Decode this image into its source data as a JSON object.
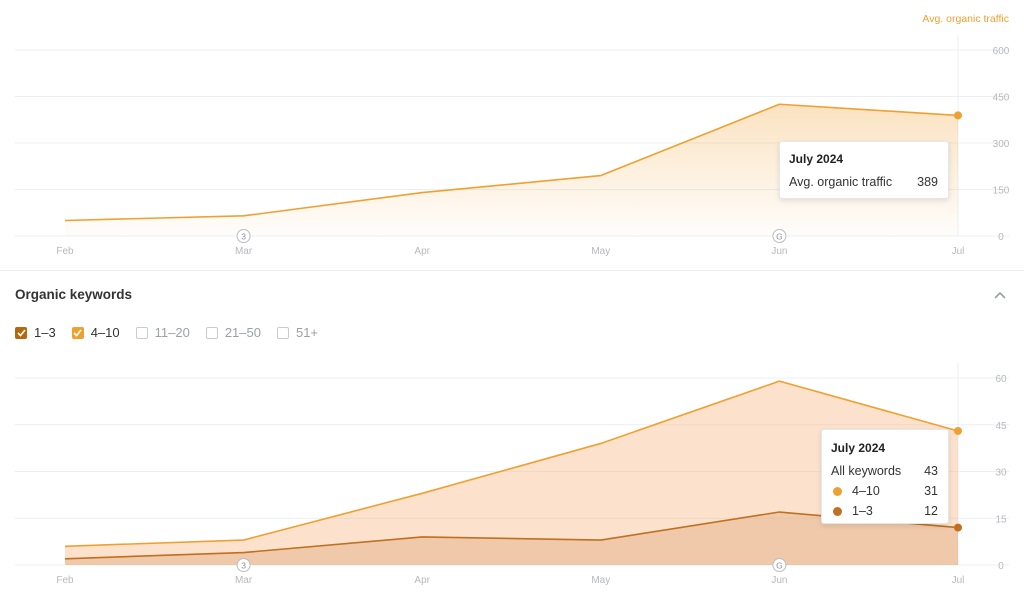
{
  "colors": {
    "orange": "#f0a030",
    "brown": "#c07020",
    "axis_text": "#b5b9bd",
    "grid": "#eceff2",
    "checkbox_brown": "#b5690f",
    "checkbox_orange": "#f0a030"
  },
  "traffic": {
    "axis_title": "Avg. organic traffic",
    "tooltip": {
      "title": "July 2024",
      "label": "Avg. organic traffic",
      "value": "389"
    }
  },
  "keywords_section": {
    "title": "Organic keywords",
    "collapse_icon": "chevron-up-icon",
    "filters": [
      {
        "label": "1–3",
        "checked": true,
        "color": "#b5690f"
      },
      {
        "label": "4–10",
        "checked": true,
        "color": "#f0a030"
      },
      {
        "label": "11–20",
        "checked": false
      },
      {
        "label": "21–50",
        "checked": false
      },
      {
        "label": "51+",
        "checked": false
      }
    ],
    "tooltip": {
      "title": "July 2024",
      "rows": [
        {
          "label": "All keywords",
          "value": "43"
        },
        {
          "label": "4–10",
          "value": "31",
          "color": "#f0a030"
        },
        {
          "label": "1–3",
          "value": "12",
          "color": "#c07020"
        }
      ]
    }
  },
  "chart_data": [
    {
      "type": "area",
      "x": [
        "Feb",
        "Mar",
        "Apr",
        "May",
        "Jun",
        "Jul"
      ],
      "ylim": [
        0,
        600
      ],
      "yticks": [
        0,
        150,
        300,
        450,
        600
      ],
      "ylabel": "Avg. organic traffic",
      "grid": true,
      "series": [
        {
          "name": "Avg. organic traffic",
          "values": [
            50,
            65,
            140,
            195,
            425,
            389
          ],
          "color": "#f0a030"
        }
      ],
      "annotations": [
        {
          "x": "Mar",
          "label": "3"
        },
        {
          "x": "Jun",
          "label": "G"
        }
      ]
    },
    {
      "type": "area",
      "stacked": true,
      "x": [
        "Feb",
        "Mar",
        "Apr",
        "May",
        "Jun",
        "Jul"
      ],
      "ylim": [
        0,
        60
      ],
      "yticks": [
        0,
        15,
        30,
        45,
        60
      ],
      "grid": true,
      "series": [
        {
          "name": "1–3",
          "values": [
            2,
            4,
            9,
            8,
            17,
            12
          ],
          "color": "#c07020"
        },
        {
          "name": "4–10",
          "values": [
            4,
            4,
            14,
            31,
            42,
            31
          ],
          "color": "#f0a030"
        }
      ],
      "annotations": [
        {
          "x": "Mar",
          "label": "3"
        },
        {
          "x": "Jun",
          "label": "G"
        }
      ]
    }
  ]
}
